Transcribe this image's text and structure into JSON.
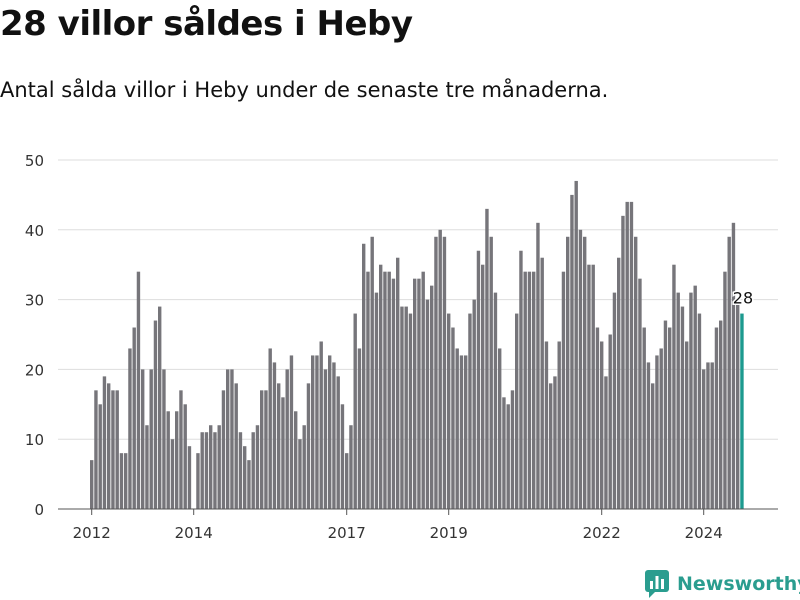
{
  "title": "28 villor såldes i Heby",
  "subtitle": "Antal sålda villor i Heby under de senaste tre månaderna.",
  "brand": {
    "name": "Newsworthy",
    "icon": "newsworthy-logo-icon",
    "color": "#2a9d8f"
  },
  "colors": {
    "bar": "#76757a",
    "highlight": "#1d9a8f",
    "grid": "#dddddd",
    "axis": "#555555"
  },
  "chart_data": {
    "type": "bar",
    "title": "28 villor såldes i Heby",
    "xlabel": "",
    "ylabel": "",
    "ylim": [
      0,
      50
    ],
    "yticks": [
      0,
      10,
      20,
      30,
      40,
      50
    ],
    "grid": true,
    "x_start": "2012-01",
    "xticks": [
      {
        "label": "2012",
        "index": 0
      },
      {
        "label": "2014",
        "index": 24
      },
      {
        "label": "2017",
        "index": 60
      },
      {
        "label": "2019",
        "index": 84
      },
      {
        "label": "2022",
        "index": 120
      },
      {
        "label": "2024",
        "index": 144
      }
    ],
    "values": [
      7,
      17,
      15,
      19,
      18,
      17,
      17,
      8,
      8,
      23,
      26,
      34,
      20,
      12,
      20,
      27,
      29,
      20,
      14,
      10,
      14,
      17,
      15,
      9,
      0,
      8,
      11,
      11,
      12,
      11,
      12,
      17,
      20,
      20,
      18,
      11,
      9,
      7,
      11,
      12,
      17,
      17,
      23,
      21,
      18,
      16,
      20,
      22,
      14,
      10,
      12,
      18,
      22,
      22,
      24,
      20,
      22,
      21,
      19,
      15,
      8,
      12,
      28,
      23,
      38,
      34,
      39,
      31,
      35,
      34,
      34,
      33,
      36,
      29,
      29,
      28,
      33,
      33,
      34,
      30,
      32,
      39,
      40,
      39,
      28,
      26,
      23,
      22,
      22,
      28,
      30,
      37,
      35,
      43,
      39,
      31,
      23,
      16,
      15,
      17,
      28,
      37,
      34,
      34,
      34,
      41,
      36,
      24,
      18,
      19,
      24,
      34,
      39,
      45,
      47,
      40,
      39,
      35,
      35,
      26,
      24,
      19,
      25,
      31,
      36,
      42,
      44,
      44,
      39,
      33,
      26,
      21,
      18,
      22,
      23,
      27,
      26,
      35,
      31,
      29,
      24,
      31,
      32,
      28,
      20,
      21,
      21,
      26,
      27,
      34,
      39,
      41,
      30,
      28
    ],
    "highlight_index": 153,
    "annotation": {
      "index": 153,
      "label": "28"
    }
  }
}
